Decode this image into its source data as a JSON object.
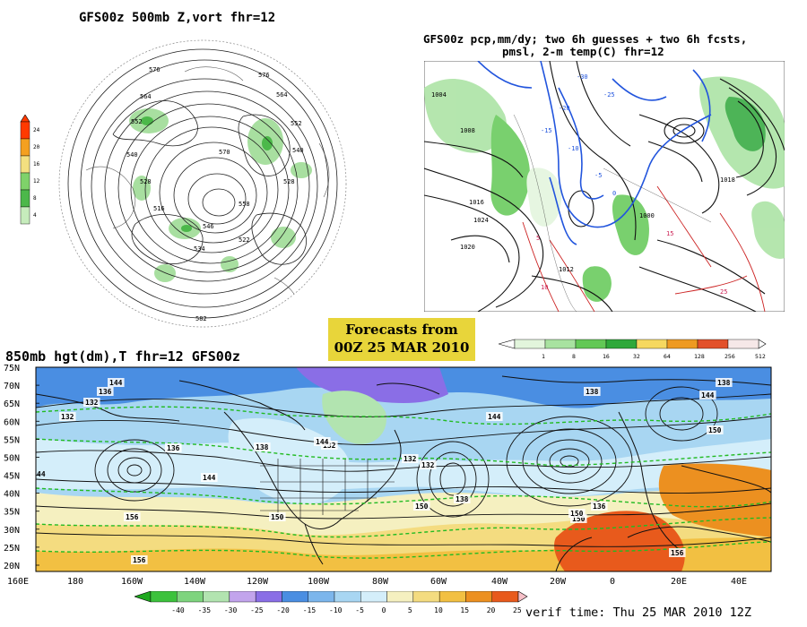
{
  "panel_500mb": {
    "title": "GFS00z  500mb Z,vort    fhr=12",
    "colorbar_ticks": [
      "24",
      "20",
      "16",
      "12",
      "8",
      "4"
    ],
    "colorbar_colors": [
      "#ff3a00",
      "#f4a020",
      "#f3e080",
      "#7fd26a",
      "#4cb84a",
      "#c6ecbc"
    ],
    "contour_labels": [
      "576",
      "576",
      "564",
      "564",
      "552",
      "552",
      "540",
      "540",
      "528",
      "528",
      "516",
      "570",
      "558",
      "546",
      "534",
      "522",
      "582"
    ]
  },
  "panel_pcp": {
    "title_line1": "GFS00z pcp,mm/dy; two 6h guesses + two 6h fcsts,",
    "title_line2": "pmsl, 2-m temp(C)  fhr=12",
    "pressure_labels": [
      "1004",
      "1008",
      "1016",
      "1020",
      "1024",
      "1012",
      "1000",
      "1018"
    ],
    "temp_labels": [
      "-30",
      "-25",
      "-20",
      "-15",
      "-10",
      "-5",
      "0",
      "5",
      "10",
      "15",
      "25"
    ],
    "colorbar_ticks": [
      "1",
      "8",
      "16",
      "32",
      "64",
      "128",
      "256",
      "512"
    ],
    "colorbar_colors": [
      "#e2f5dc",
      "#a8e2a0",
      "#62c855",
      "#2fa83a",
      "#f6d860",
      "#ee9a22",
      "#e2502a",
      "#f6e8e8"
    ]
  },
  "banner": {
    "line1": "Forecasts from",
    "line2": "00Z 25 MAR 2010"
  },
  "panel_850mb": {
    "title": "850mb hgt(dm),T  fhr=12 GFS00z",
    "lat_labels": [
      "75N",
      "70N",
      "65N",
      "60N",
      "55N",
      "50N",
      "45N",
      "40N",
      "35N",
      "30N",
      "25N",
      "20N"
    ],
    "lon_labels": [
      "160E",
      "180",
      "160W",
      "140W",
      "120W",
      "100W",
      "80W",
      "60W",
      "40W",
      "20W",
      "0",
      "20E",
      "40E"
    ],
    "contour_labels": [
      "136",
      "132",
      "144",
      "132",
      "136",
      "144",
      "132",
      "138",
      "144",
      "150",
      "156",
      "156",
      "132",
      "138",
      "150",
      "144",
      "150",
      "138",
      "132",
      "136",
      "150",
      "156",
      "150",
      "138",
      "144"
    ],
    "colorbar_ticks": [
      "-40",
      "-35",
      "-30",
      "-25",
      "-20",
      "-15",
      "-10",
      "-5",
      "0",
      "5",
      "10",
      "15",
      "20",
      "25"
    ],
    "colorbar_colors": [
      "#3cc23c",
      "#7ed47e",
      "#b2e4b0",
      "#c2a4ec",
      "#8a6ee6",
      "#4a8ee2",
      "#7cb6ec",
      "#a8d6f2",
      "#d4eefa",
      "#f5f0c0",
      "#f4dc80",
      "#f2c042",
      "#ec9020",
      "#e85a1c"
    ]
  },
  "verif_time": "verif time: Thu 25 MAR 2010 12Z"
}
